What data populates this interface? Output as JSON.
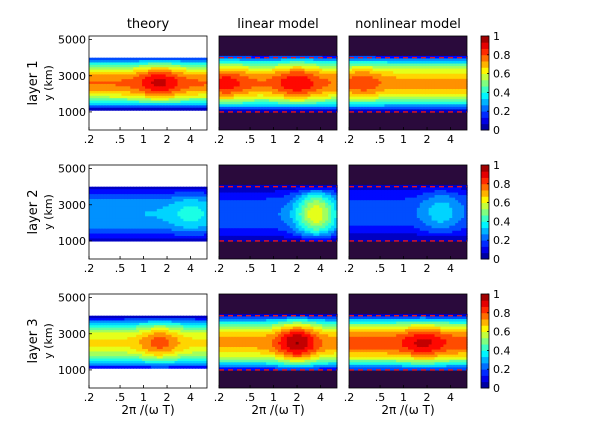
{
  "chart_data": {
    "type": "heatmap",
    "column_titles": [
      "theory",
      "linear model",
      "nonlinear model"
    ],
    "row_labels": [
      "layer 1",
      "layer 2",
      "layer 3"
    ],
    "ylabel": "y (km)",
    "xlabel": "2π /(ω T)",
    "x_scale": "log",
    "x_ticks": [
      0.2,
      0.5,
      1,
      2,
      4
    ],
    "x_tick_labels": [
      ".2",
      ".5",
      "1",
      "2",
      "4"
    ],
    "xlim": [
      0.2,
      6.5
    ],
    "y_ticks": [
      1000,
      3000,
      5000
    ],
    "y_tick_labels": [
      "1000",
      "3000",
      "5000"
    ],
    "ylim": [
      0,
      5200
    ],
    "colorbar": {
      "range": [
        0,
        1
      ],
      "ticks": [
        0,
        0.2,
        0.4,
        0.6,
        0.8,
        1
      ],
      "tick_labels": [
        "0",
        "0.2",
        "0.4",
        "0.6",
        "0.8",
        "1"
      ],
      "colormap": "jet"
    },
    "reference_lines_km": [
      1000,
      4000
    ],
    "reference_line_color": "#e8141e",
    "background_color": "#2a0a3c",
    "panels": [
      {
        "row": 0,
        "col": 0,
        "domain": [
          1100,
          4000
        ],
        "center": 2600,
        "outside": "white",
        "peaks": [
          {
            "x": 1.6,
            "amp": 0.9
          }
        ],
        "base": 0.75,
        "refLines": false
      },
      {
        "row": 0,
        "col": 1,
        "domain": [
          1000,
          4100
        ],
        "center": 2600,
        "outside": "dark",
        "peaks": [
          {
            "x": 0.25,
            "amp": 0.85
          },
          {
            "x": 2.0,
            "amp": 0.88
          }
        ],
        "base": 0.74,
        "refLines": true
      },
      {
        "row": 0,
        "col": 2,
        "domain": [
          1000,
          4100
        ],
        "center": 2600,
        "outside": "dark",
        "peaks": [
          {
            "x": 0.3,
            "amp": 0.8
          }
        ],
        "base": 0.7,
        "refLines": true
      },
      {
        "row": 1,
        "col": 0,
        "domain": [
          1000,
          4000
        ],
        "center": 2500,
        "outside": "white",
        "peaks": [
          {
            "x": 4.0,
            "amp": 0.38
          }
        ],
        "base": 0.28,
        "refLines": false
      },
      {
        "row": 1,
        "col": 1,
        "domain": [
          1000,
          4100
        ],
        "center": 2500,
        "outside": "dark",
        "peaks": [
          {
            "x": 3.5,
            "amp": 0.6
          }
        ],
        "base": 0.2,
        "refLines": true
      },
      {
        "row": 1,
        "col": 2,
        "domain": [
          1000,
          4100
        ],
        "center": 2600,
        "outside": "dark",
        "peaks": [
          {
            "x": 3.0,
            "amp": 0.32
          }
        ],
        "base": 0.18,
        "refLines": true
      },
      {
        "row": 2,
        "col": 0,
        "domain": [
          1100,
          4000
        ],
        "center": 2500,
        "outside": "white",
        "peaks": [
          {
            "x": 1.6,
            "amp": 0.78
          }
        ],
        "base": 0.62,
        "refLines": false
      },
      {
        "row": 2,
        "col": 1,
        "domain": [
          1000,
          4100
        ],
        "center": 2500,
        "outside": "dark",
        "peaks": [
          {
            "x": 2.0,
            "amp": 0.95
          }
        ],
        "base": 0.7,
        "refLines": true
      },
      {
        "row": 2,
        "col": 2,
        "domain": [
          1000,
          4100
        ],
        "center": 2500,
        "outside": "dark",
        "peaks": [
          {
            "x": 1.8,
            "amp": 0.9
          }
        ],
        "base": 0.78,
        "refLines": true
      }
    ]
  }
}
